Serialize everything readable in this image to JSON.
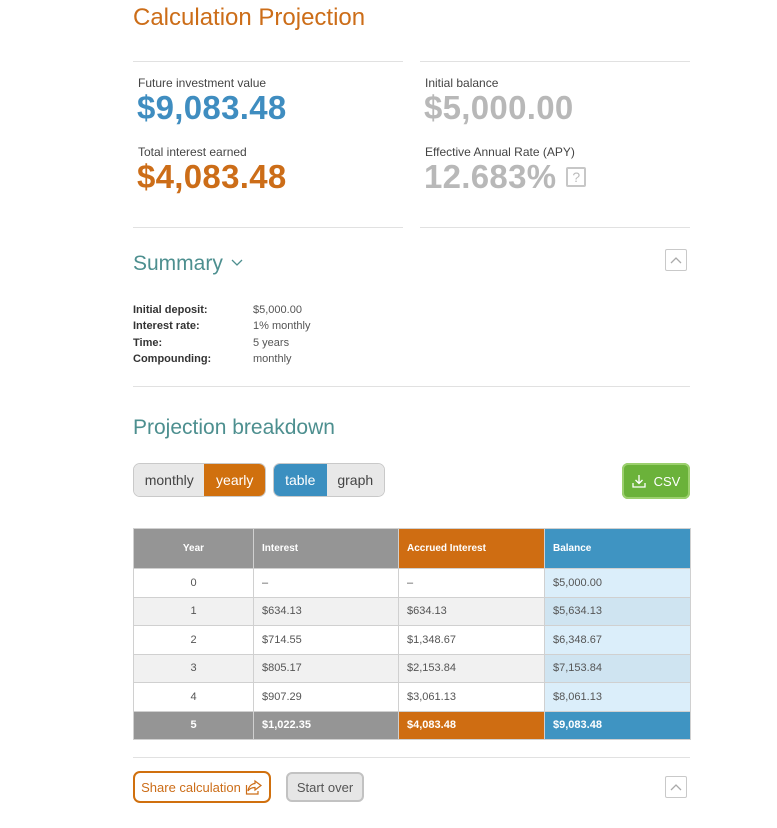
{
  "header": {
    "title": "Calculation Projection"
  },
  "results": {
    "future_value_label": "Future investment value",
    "future_value": "$9,083.48",
    "interest_label": "Total interest earned",
    "interest": "$4,083.48",
    "initial_label": "Initial balance",
    "initial": "$5,000.00",
    "apy_label": "Effective Annual Rate (APY)",
    "apy": "12.683%",
    "apy_help": "?"
  },
  "summary": {
    "title": "Summary",
    "rows": [
      {
        "label": "Initial deposit:",
        "value": "$5,000.00"
      },
      {
        "label": "Interest rate:",
        "value": "1% monthly"
      },
      {
        "label": "Time:",
        "value": "5 years"
      },
      {
        "label": "Compounding:",
        "value": "monthly"
      }
    ]
  },
  "breakdown": {
    "title": "Projection breakdown",
    "period_toggle": {
      "monthly": "monthly",
      "yearly": "yearly",
      "selected": "yearly"
    },
    "view_toggle": {
      "table": "table",
      "graph": "graph",
      "selected": "table"
    },
    "csv_label": "CSV",
    "colors": {
      "orange": "#cf6d12",
      "blue": "#3f94c2",
      "grey": "#959595",
      "green": "#6bb23a"
    }
  },
  "table": {
    "headers": [
      "Year",
      "Interest",
      "Accrued Interest",
      "Balance"
    ],
    "rows": [
      [
        "0",
        "–",
        "–",
        "$5,000.00"
      ],
      [
        "1",
        "$634.13",
        "$634.13",
        "$5,634.13"
      ],
      [
        "2",
        "$714.55",
        "$1,348.67",
        "$6,348.67"
      ],
      [
        "3",
        "$805.17",
        "$2,153.84",
        "$7,153.84"
      ],
      [
        "4",
        "$907.29",
        "$3,061.13",
        "$8,061.13"
      ]
    ],
    "total": [
      "5",
      "$1,022.35",
      "$4,083.48",
      "$9,083.48"
    ]
  },
  "footer": {
    "share_label": "Share calculation",
    "start_over_label": "Start over"
  }
}
